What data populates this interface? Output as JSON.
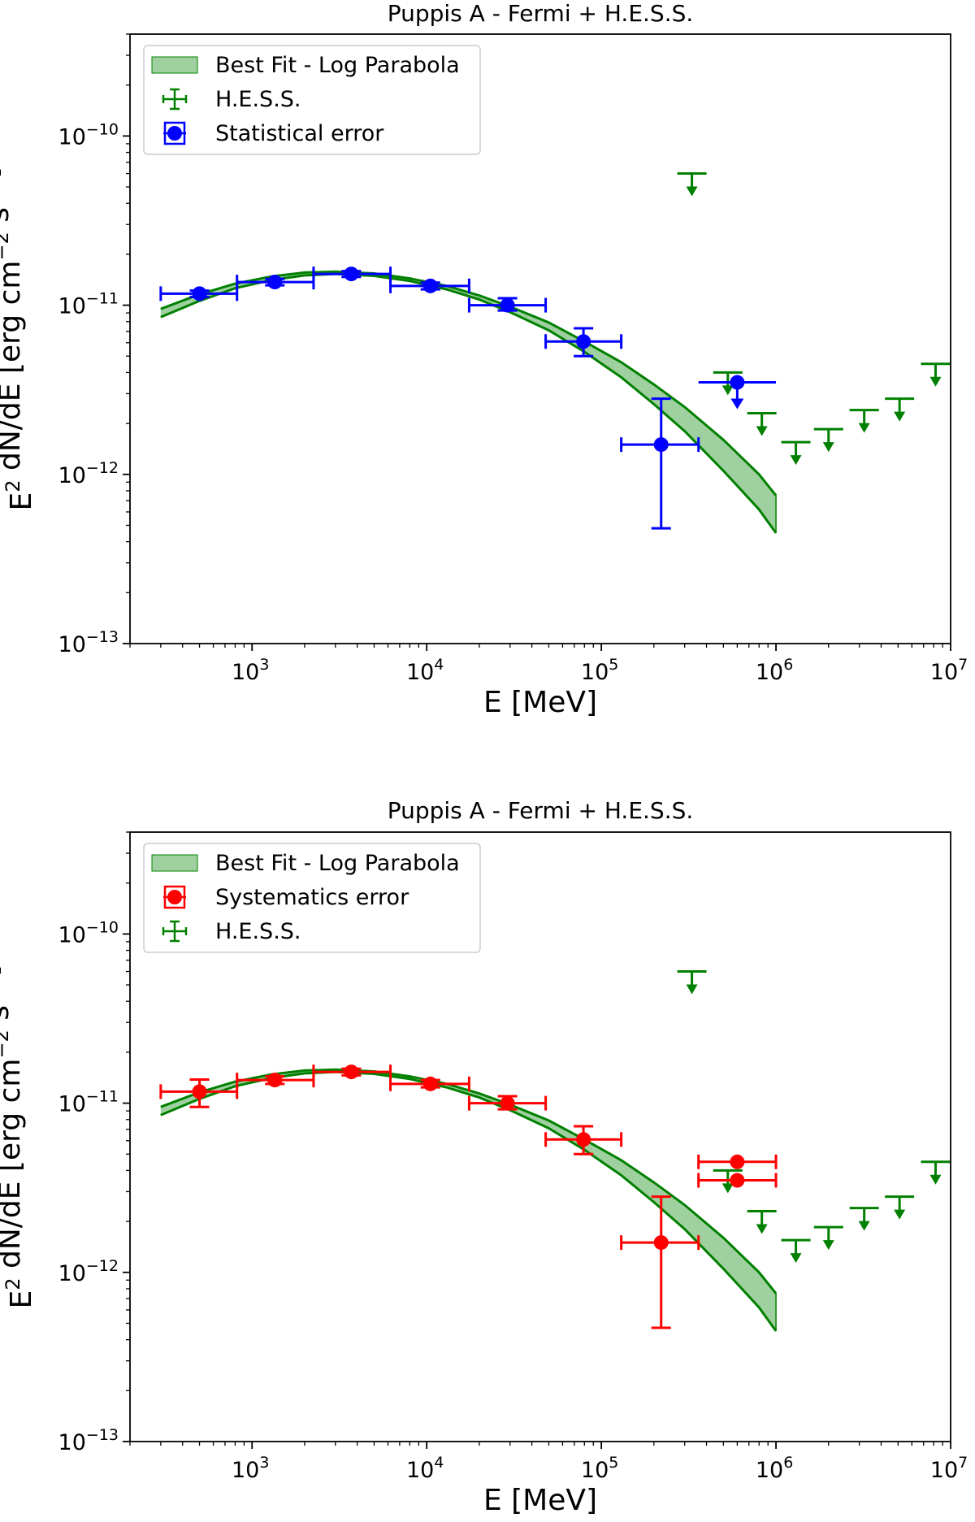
{
  "chart_data": [
    {
      "type": "scatter",
      "title": "Puppis A - Fermi + H.E.S.S.",
      "xlabel": "E [MeV]",
      "ylabel": "E$^{2}$ dN/dE [erg cm$^{-2}$ s$^{-1}$]",
      "xscale": "log",
      "yscale": "log",
      "xlim": [
        200,
        10000000
      ],
      "ylim": [
        1e-13,
        4e-10
      ],
      "xticks": [
        {
          "base": "10",
          "exp": "3",
          "value": 1000
        },
        {
          "base": "10",
          "exp": "4",
          "value": 10000
        },
        {
          "base": "10",
          "exp": "5",
          "value": 100000
        },
        {
          "base": "10",
          "exp": "6",
          "value": 1000000
        },
        {
          "base": "10",
          "exp": "7",
          "value": 10000000
        }
      ],
      "yticks": [
        {
          "base": "10",
          "exp": "−13",
          "value": 1e-13
        },
        {
          "base": "10",
          "exp": "−12",
          "value": 1e-12
        },
        {
          "base": "10",
          "exp": "−11",
          "value": 1e-11
        },
        {
          "base": "10",
          "exp": "−10",
          "value": 1e-10
        }
      ],
      "legend_position": "upper-left",
      "legend": [
        {
          "label": "Best Fit - Log Parabola",
          "kind": "band"
        },
        {
          "label": "H.E.S.S.",
          "kind": "hess"
        },
        {
          "label": "Statistical error",
          "kind": "fermi"
        }
      ],
      "fermi_color": "#0000ff",
      "band": {
        "color": "#008000",
        "fill": "#9fd09f",
        "x": [
          300,
          500,
          800,
          1300,
          2000,
          3000,
          5000,
          8000,
          13000,
          20000,
          30000,
          50000,
          80000,
          130000,
          200000,
          300000,
          500000,
          800000,
          1000000
        ],
        "upper": [
          9.5e-12,
          1.16e-11,
          1.34e-11,
          1.48e-11,
          1.56e-11,
          1.58e-11,
          1.54e-11,
          1.44e-11,
          1.3e-11,
          1.14e-11,
          9.8e-12,
          7.9e-12,
          6.1e-12,
          4.6e-12,
          3.4e-12,
          2.5e-12,
          1.6e-12,
          1e-12,
          7.5e-13
        ],
        "lower": [
          8.5e-12,
          1.06e-11,
          1.26e-11,
          1.41e-11,
          1.5e-11,
          1.53e-11,
          1.49e-11,
          1.39e-11,
          1.24e-11,
          1.08e-11,
          9.1e-12,
          7.1e-12,
          5.3e-12,
          3.75e-12,
          2.6e-12,
          1.8e-12,
          1.05e-12,
          6.2e-13,
          4.5e-13
        ]
      },
      "fermi_points": [
        {
          "x": 500,
          "y": 1.17e-11,
          "xlo": 300,
          "xhi": 820,
          "ylo": 1.12e-11,
          "yhi": 1.22e-11
        },
        {
          "x": 1350,
          "y": 1.37e-11,
          "xlo": 820,
          "xhi": 2250,
          "ylo": 1.31e-11,
          "yhi": 1.43e-11
        },
        {
          "x": 3700,
          "y": 1.53e-11,
          "xlo": 2250,
          "xhi": 6200,
          "ylo": 1.47e-11,
          "yhi": 1.59e-11
        },
        {
          "x": 10500,
          "y": 1.3e-11,
          "xlo": 6200,
          "xhi": 17500,
          "ylo": 1.24e-11,
          "yhi": 1.36e-11
        },
        {
          "x": 29000,
          "y": 1e-11,
          "xlo": 17500,
          "xhi": 48000,
          "ylo": 9.3e-12,
          "yhi": 1.1e-11
        },
        {
          "x": 79000,
          "y": 6.1e-12,
          "xlo": 48000,
          "xhi": 130000,
          "ylo": 5e-12,
          "yhi": 7.3e-12
        },
        {
          "x": 220000,
          "y": 1.5e-12,
          "xlo": 130000,
          "xhi": 360000,
          "ylo": 4.8e-13,
          "yhi": 2.8e-12
        }
      ],
      "fermi_upper_limits": [
        {
          "x": 600000,
          "y": 3.5e-12,
          "xlo": 360000,
          "xhi": 1000000
        }
      ],
      "hess_upper_limits": [
        {
          "x": 330000,
          "y": 6e-11
        },
        {
          "x": 530000,
          "y": 4e-12
        },
        {
          "x": 830000,
          "y": 2.3e-12
        },
        {
          "x": 1300000,
          "y": 1.55e-12
        },
        {
          "x": 2000000,
          "y": 1.85e-12
        },
        {
          "x": 3200000,
          "y": 2.4e-12
        },
        {
          "x": 5100000,
          "y": 2.8e-12
        },
        {
          "x": 8200000,
          "y": 4.5e-12
        }
      ],
      "hess_color": "#008000"
    },
    {
      "type": "scatter",
      "title": "Puppis A - Fermi + H.E.S.S.",
      "xlabel": "E [MeV]",
      "ylabel": "E$^{2}$ dN/dE [erg cm$^{-2}$ s$^{-1}$]",
      "xscale": "log",
      "yscale": "log",
      "xlim": [
        200,
        10000000
      ],
      "ylim": [
        1e-13,
        4e-10
      ],
      "xticks": [
        {
          "base": "10",
          "exp": "3",
          "value": 1000
        },
        {
          "base": "10",
          "exp": "4",
          "value": 10000
        },
        {
          "base": "10",
          "exp": "5",
          "value": 100000
        },
        {
          "base": "10",
          "exp": "6",
          "value": 1000000
        },
        {
          "base": "10",
          "exp": "7",
          "value": 10000000
        }
      ],
      "yticks": [
        {
          "base": "10",
          "exp": "−13",
          "value": 1e-13
        },
        {
          "base": "10",
          "exp": "−12",
          "value": 1e-12
        },
        {
          "base": "10",
          "exp": "−11",
          "value": 1e-11
        },
        {
          "base": "10",
          "exp": "−10",
          "value": 1e-10
        }
      ],
      "legend_position": "upper-left",
      "legend": [
        {
          "label": "Best Fit - Log Parabola",
          "kind": "band"
        },
        {
          "label": "Systematics error",
          "kind": "fermi"
        },
        {
          "label": "H.E.S.S.",
          "kind": "hess"
        }
      ],
      "fermi_color": "#ff0000",
      "band": {
        "color": "#008000",
        "fill": "#9fd09f",
        "x": [
          300,
          500,
          800,
          1300,
          2000,
          3000,
          5000,
          8000,
          13000,
          20000,
          30000,
          50000,
          80000,
          130000,
          200000,
          300000,
          500000,
          800000,
          1000000
        ],
        "upper": [
          9.5e-12,
          1.16e-11,
          1.34e-11,
          1.48e-11,
          1.56e-11,
          1.58e-11,
          1.54e-11,
          1.44e-11,
          1.3e-11,
          1.14e-11,
          9.8e-12,
          7.9e-12,
          6.1e-12,
          4.6e-12,
          3.4e-12,
          2.5e-12,
          1.6e-12,
          1e-12,
          7.5e-13
        ],
        "lower": [
          8.5e-12,
          1.06e-11,
          1.26e-11,
          1.41e-11,
          1.5e-11,
          1.53e-11,
          1.49e-11,
          1.39e-11,
          1.24e-11,
          1.08e-11,
          9.1e-12,
          7.1e-12,
          5.3e-12,
          3.75e-12,
          2.6e-12,
          1.8e-12,
          1.05e-12,
          6.2e-13,
          4.5e-13
        ]
      },
      "fermi_points": [
        {
          "x": 500,
          "y": 1.17e-11,
          "xlo": 300,
          "xhi": 820,
          "ylo": 9.5e-12,
          "yhi": 1.38e-11
        },
        {
          "x": 1350,
          "y": 1.37e-11,
          "xlo": 820,
          "xhi": 2250,
          "ylo": 1.3e-11,
          "yhi": 1.44e-11
        },
        {
          "x": 3700,
          "y": 1.53e-11,
          "xlo": 2250,
          "xhi": 6200,
          "ylo": 1.46e-11,
          "yhi": 1.6e-11
        },
        {
          "x": 10500,
          "y": 1.3e-11,
          "xlo": 6200,
          "xhi": 17500,
          "ylo": 1.24e-11,
          "yhi": 1.37e-11
        },
        {
          "x": 29000,
          "y": 1e-11,
          "xlo": 17500,
          "xhi": 48000,
          "ylo": 9.2e-12,
          "yhi": 1.1e-11
        },
        {
          "x": 79000,
          "y": 6.1e-12,
          "xlo": 48000,
          "xhi": 130000,
          "ylo": 5e-12,
          "yhi": 7.3e-12
        },
        {
          "x": 220000,
          "y": 1.5e-12,
          "xlo": 130000,
          "xhi": 360000,
          "ylo": 4.7e-13,
          "yhi": 2.8e-12
        },
        {
          "x": 600000,
          "y": 4.5e-12,
          "xlo": 360000,
          "xhi": 1000000,
          "ylo": 4.5e-12,
          "yhi": 4.5e-12
        },
        {
          "x": 600000,
          "y": 3.5e-12,
          "xlo": 360000,
          "xhi": 1000000,
          "ylo": 3.5e-12,
          "yhi": 3.5e-12
        }
      ],
      "fermi_upper_limits": [],
      "hess_upper_limits": [
        {
          "x": 330000,
          "y": 6e-11
        },
        {
          "x": 530000,
          "y": 4e-12
        },
        {
          "x": 830000,
          "y": 2.3e-12
        },
        {
          "x": 1300000,
          "y": 1.55e-12
        },
        {
          "x": 2000000,
          "y": 1.85e-12
        },
        {
          "x": 3200000,
          "y": 2.4e-12
        },
        {
          "x": 5100000,
          "y": 2.8e-12
        },
        {
          "x": 8200000,
          "y": 4.5e-12
        }
      ],
      "hess_color": "#008000"
    }
  ]
}
